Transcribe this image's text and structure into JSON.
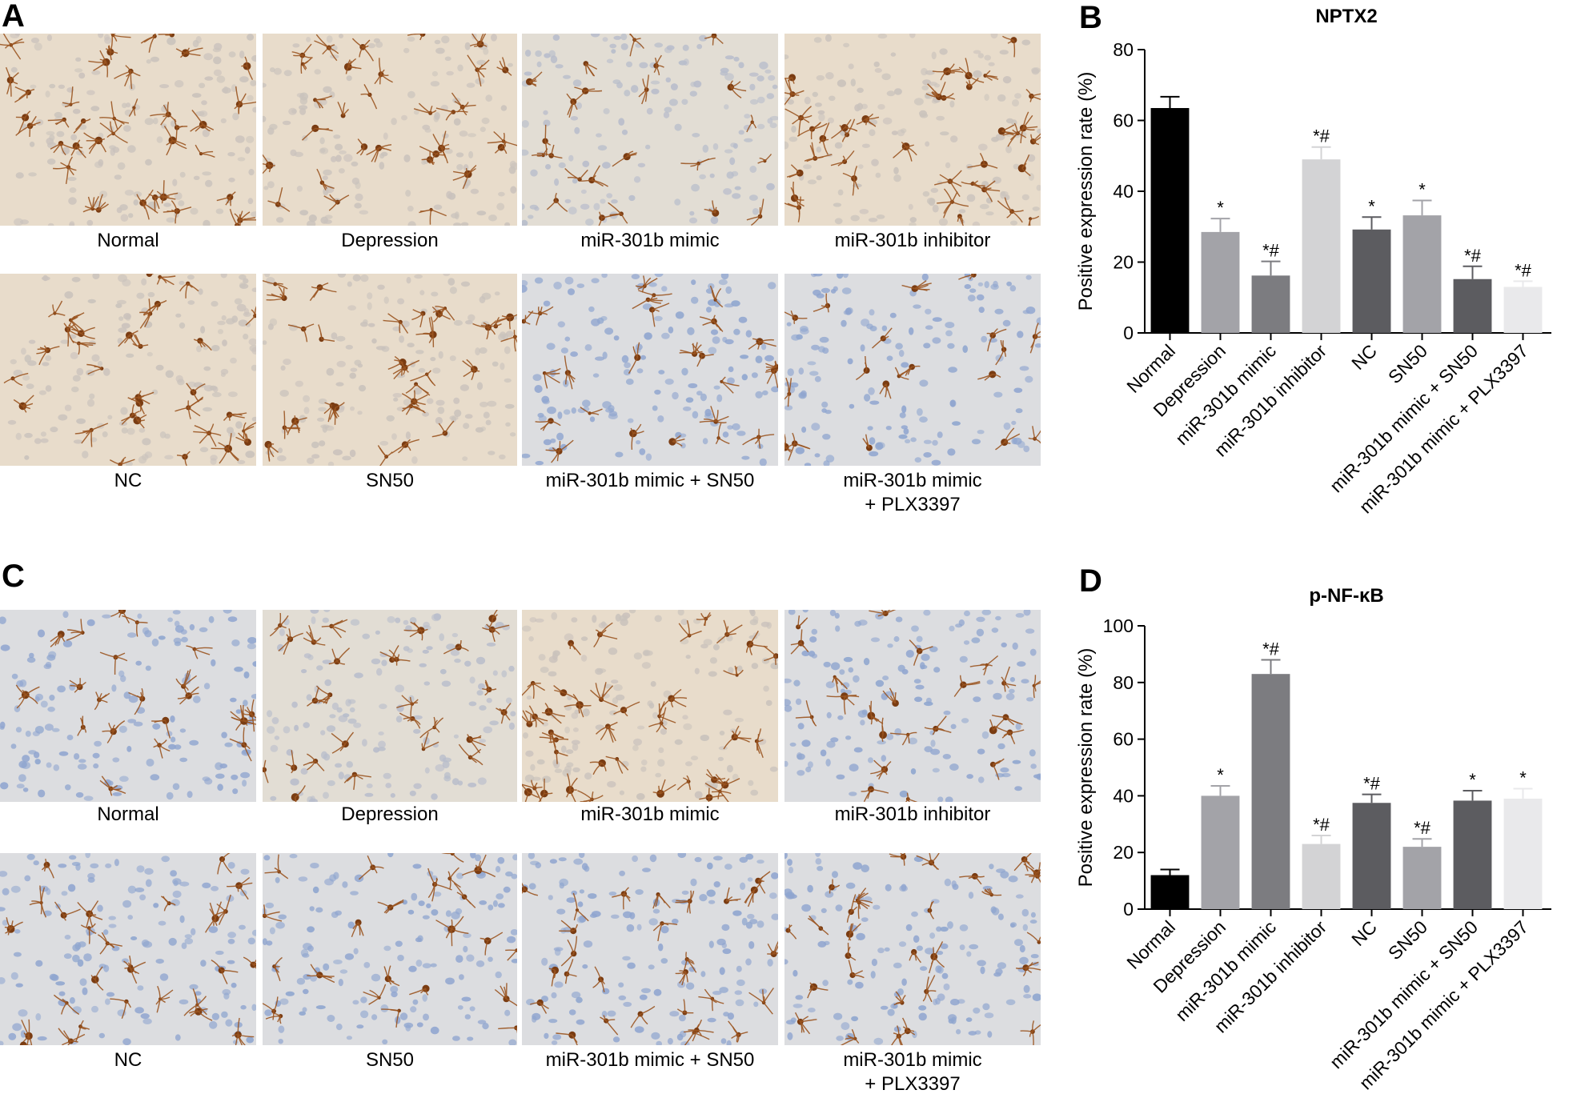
{
  "panels": {
    "A": {
      "letter": "A",
      "images": [
        {
          "label": "Normal",
          "tone": "brown",
          "density": 1.0
        },
        {
          "label": "Depression",
          "tone": "brown",
          "density": 0.8
        },
        {
          "label": "miR-301b mimic",
          "tone": "mixed",
          "density": 0.6
        },
        {
          "label": "miR-301b inhibitor",
          "tone": "brown",
          "density": 0.95
        },
        {
          "label": "NC",
          "tone": "brown",
          "density": 0.85
        },
        {
          "label": "SN50",
          "tone": "brown",
          "density": 0.75
        },
        {
          "label": "miR-301b mimic + SN50",
          "tone": "blue",
          "density": 0.65
        },
        {
          "label": "miR-301b mimic\n+ PLX3397",
          "tone": "blue",
          "density": 0.5
        }
      ]
    },
    "C": {
      "letter": "C",
      "images": [
        {
          "label": "Normal",
          "tone": "blue",
          "density": 0.55
        },
        {
          "label": "Depression",
          "tone": "mixed",
          "density": 0.7
        },
        {
          "label": "miR-301b mimic",
          "tone": "brown",
          "density": 1.0
        },
        {
          "label": "miR-301b inhibitor",
          "tone": "blue",
          "density": 0.6
        },
        {
          "label": "NC",
          "tone": "blue",
          "density": 0.7
        },
        {
          "label": "SN50",
          "tone": "blue",
          "density": 0.6
        },
        {
          "label": "miR-301b mimic + SN50",
          "tone": "blue",
          "density": 0.7
        },
        {
          "label": "miR-301b mimic\n+ PLX3397",
          "tone": "blue",
          "density": 0.75
        }
      ]
    }
  },
  "chart_data": [
    {
      "panel": "B",
      "type": "bar",
      "title": "NPTX2",
      "ylabel": "Positive expression rate (%)",
      "ylim": [
        0,
        80
      ],
      "yticks": [
        0,
        20,
        40,
        60,
        80
      ],
      "categories": [
        "Normal",
        "Depression",
        "miR-301b mimic",
        "miR-301b inhibitor",
        "NC",
        "SN50",
        "miR-301b mimic + SN50",
        "miR-301b mimic + PLX3397"
      ],
      "values": [
        63.5,
        28.5,
        16.2,
        49.0,
        29.2,
        33.2,
        15.2,
        13.0
      ],
      "errors": [
        3.2,
        3.8,
        4.0,
        3.5,
        3.5,
        4.2,
        3.6,
        1.6
      ],
      "annotations": [
        "",
        "*",
        "*#",
        "*#",
        "*",
        "*",
        "*#",
        "*#"
      ],
      "colors": [
        "#000000",
        "#a3a3a8",
        "#7c7c80",
        "#d3d3d5",
        "#5c5c60",
        "#a3a3a8",
        "#5c5c60",
        "#e9e9eb"
      ],
      "grid": false
    },
    {
      "panel": "D",
      "type": "bar",
      "title": "p-NF-κB",
      "ylabel": "Positive expression rate (%)",
      "ylim": [
        0,
        100
      ],
      "yticks": [
        0,
        20,
        40,
        60,
        80,
        100
      ],
      "categories": [
        "Normal",
        "Depression",
        "miR-301b mimic",
        "miR-301b inhibitor",
        "NC",
        "SN50",
        "miR-301b mimic + SN50",
        "miR-301b mimic + PLX3397"
      ],
      "values": [
        12.0,
        40.0,
        83.0,
        23.0,
        37.5,
        22.0,
        38.3,
        39.0
      ],
      "errors": [
        2.0,
        3.5,
        5.0,
        3.0,
        3.0,
        2.8,
        3.5,
        3.5
      ],
      "annotations": [
        "",
        "*",
        "*#",
        "*#",
        "*#",
        "*#",
        "*",
        "*"
      ],
      "colors": [
        "#000000",
        "#a3a3a8",
        "#7c7c80",
        "#d3d3d5",
        "#5c5c60",
        "#a3a3a8",
        "#5c5c60",
        "#e9e9eb"
      ],
      "grid": false
    }
  ]
}
